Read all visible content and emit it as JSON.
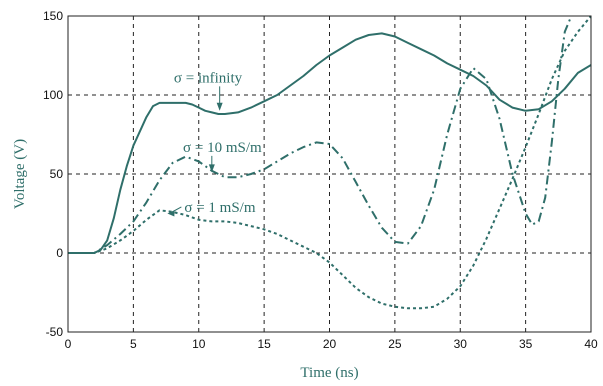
{
  "chart_data": {
    "type": "line",
    "title": "",
    "xlabel": "Time (ns)",
    "ylabel": "Voltage (V)",
    "xlim": [
      0,
      40
    ],
    "ylim": [
      -50,
      150
    ],
    "xticks": [
      0,
      5,
      10,
      15,
      20,
      25,
      30,
      35,
      40
    ],
    "yticks": [
      -50,
      0,
      50,
      100,
      150
    ],
    "grid": true,
    "line_color": "#2f6f6a",
    "series": [
      {
        "dash": "solid",
        "x": [
          0,
          1,
          2,
          2.5,
          3,
          3.5,
          4,
          4.5,
          5,
          6,
          6.5,
          7,
          8,
          9,
          9.5,
          10,
          10.5,
          11,
          11.5,
          12,
          13,
          14,
          15,
          16,
          17,
          18,
          19,
          20,
          21,
          22,
          23,
          24,
          25,
          26,
          27,
          28,
          29,
          30,
          31,
          32,
          33,
          34,
          35,
          36,
          37,
          38,
          39,
          40
        ],
        "y": [
          0,
          0,
          0,
          2,
          8,
          22,
          40,
          55,
          68,
          86,
          93,
          95,
          95,
          95,
          94,
          92,
          90,
          89,
          88,
          88,
          89,
          92,
          96,
          100,
          106,
          112,
          119,
          125,
          130,
          135,
          138,
          139,
          137,
          133,
          129,
          125,
          120,
          116,
          112,
          106,
          97,
          92,
          90,
          91,
          96,
          104,
          114,
          119
        ]
      },
      {
        "dash": "dash-dot",
        "x": [
          0,
          2,
          3,
          4,
          5,
          6,
          7,
          8,
          9,
          10,
          11,
          12,
          13,
          14,
          15,
          16,
          17,
          18,
          19,
          20,
          21,
          22,
          23,
          24,
          25,
          26,
          27,
          28,
          29,
          30,
          31,
          32,
          33,
          34,
          35,
          35.5,
          36,
          36.5,
          37,
          37.5,
          38,
          39,
          40
        ],
        "y": [
          0,
          0,
          5,
          12,
          20,
          32,
          46,
          57,
          61,
          58,
          52,
          48,
          48,
          50,
          53,
          58,
          63,
          67,
          70,
          69,
          60,
          45,
          30,
          16,
          7,
          6,
          17,
          40,
          75,
          104,
          117,
          110,
          85,
          50,
          25,
          18,
          20,
          35,
          70,
          110,
          140,
          160,
          175
        ]
      },
      {
        "dash": "dotted",
        "x": [
          0,
          2,
          3,
          4,
          5,
          6,
          7,
          8,
          9,
          10,
          11,
          12,
          13,
          14,
          15,
          16,
          17,
          18,
          19,
          20,
          21,
          22,
          23,
          24,
          25,
          26,
          27,
          28,
          29,
          30,
          31,
          32,
          33,
          34,
          35,
          36,
          37,
          38,
          39,
          40
        ],
        "y": [
          0,
          0,
          3,
          8,
          14,
          21,
          27,
          26,
          24,
          21,
          20,
          20,
          19,
          17,
          15,
          12,
          8,
          4,
          0,
          -6,
          -14,
          -22,
          -28,
          -32,
          -34,
          -35,
          -35,
          -34,
          -29,
          -21,
          -8,
          9,
          28,
          47,
          67,
          88,
          110,
          128,
          140,
          150
        ]
      }
    ],
    "annotations": [
      {
        "text": "σ = infinity",
        "x": 8.1,
        "y": 108,
        "arrow_to": [
          11.6,
          90
        ]
      },
      {
        "text": "σ = 10 mS/m",
        "x": 8.8,
        "y": 64,
        "arrow_to": [
          11.0,
          51
        ]
      },
      {
        "text": "σ = 1 mS/m",
        "x": 8.9,
        "y": 26,
        "arrow_to": [
          7.6,
          25
        ]
      }
    ]
  }
}
